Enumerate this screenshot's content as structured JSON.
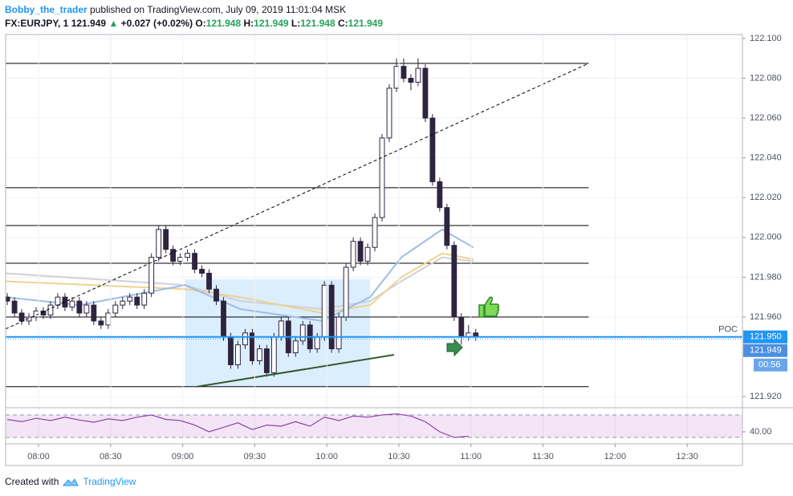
{
  "header": {
    "author": "Bobby_the_trader",
    "published": "published on TradingView.com, July 09, 2019 11:01:04 MSK",
    "symbol": "FX:EURJPY, 1",
    "last": "121.949",
    "arrow": "▲",
    "change": "+0.027 (+0.02%)",
    "o_label": "O:",
    "o": "121.948",
    "h_label": "H:",
    "h": "121.949",
    "l_label": "L:",
    "l": "121.948",
    "c_label": "C:",
    "c": "121.949"
  },
  "footer": {
    "text": "Created with",
    "brand": "TradingView"
  },
  "chart_data": {
    "type": "candlestick",
    "xlim": [
      466.3,
      773.0
    ],
    "ylim": [
      121.9144,
      122.102
    ],
    "xticks": [
      {
        "value": 480,
        "label": "08:00"
      },
      {
        "value": 510,
        "label": "08:30"
      },
      {
        "value": 540,
        "label": "09:00"
      },
      {
        "value": 570,
        "label": "09:30"
      },
      {
        "value": 600,
        "label": "10:00"
      },
      {
        "value": 630,
        "label": "10:30"
      },
      {
        "value": 660,
        "label": "11:00"
      },
      {
        "value": 690,
        "label": "11:30"
      },
      {
        "value": 720,
        "label": "12:00"
      },
      {
        "value": 750,
        "label": "12:30"
      }
    ],
    "yticks": [
      {
        "value": 121.92,
        "label": "121.920"
      },
      {
        "value": 121.96,
        "label": "121.960"
      },
      {
        "value": 121.98,
        "label": "121.980"
      },
      {
        "value": 122.0,
        "label": "122.000"
      },
      {
        "value": 122.02,
        "label": "122.020"
      },
      {
        "value": 122.04,
        "label": "122.040"
      },
      {
        "value": 122.06,
        "label": "122.060"
      },
      {
        "value": 122.08,
        "label": "122.080"
      },
      {
        "value": 122.1,
        "label": "122.100"
      }
    ],
    "grid": true,
    "up_color": "#ffffff",
    "down_color": "#2e2440",
    "wick_color": "#2e2440",
    "x": [
      467,
      470,
      473,
      476,
      479,
      482,
      485,
      488,
      491,
      494,
      497,
      500,
      503,
      506,
      509,
      512,
      515,
      518,
      521,
      524,
      527,
      530,
      533,
      536,
      539,
      542,
      545,
      548,
      551,
      554,
      557,
      560,
      563,
      566,
      569,
      572,
      575,
      578,
      581,
      584,
      587,
      590,
      593,
      596,
      599,
      602,
      605,
      608,
      611,
      614,
      617,
      620,
      623,
      626,
      629,
      632,
      635,
      638,
      641,
      644,
      647,
      650,
      653,
      656,
      659,
      662
    ],
    "open": [
      121.97,
      121.968,
      121.962,
      121.958,
      121.96,
      121.963,
      121.961,
      121.966,
      121.97,
      121.965,
      121.968,
      121.962,
      121.966,
      121.958,
      121.956,
      121.962,
      121.966,
      121.968,
      121.97,
      121.966,
      121.972,
      121.99,
      122.004,
      121.994,
      121.988,
      121.99,
      121.992,
      121.984,
      121.982,
      121.974,
      121.968,
      121.95,
      121.936,
      121.946,
      121.952,
      121.938,
      121.944,
      121.932,
      121.95,
      121.958,
      121.942,
      121.948,
      121.956,
      121.944,
      121.95,
      121.976,
      121.944,
      121.96,
      121.985,
      121.998,
      121.988,
      121.995,
      122.01,
      122.05,
      122.075,
      122.086,
      122.08,
      122.078,
      122.085,
      122.06,
      122.028,
      122.015,
      121.996,
      121.96,
      121.95,
      121.952
    ],
    "high": [
      121.972,
      121.97,
      121.964,
      121.962,
      121.965,
      121.965,
      121.968,
      121.972,
      121.972,
      121.97,
      121.97,
      121.968,
      121.968,
      121.96,
      121.964,
      121.968,
      121.97,
      121.972,
      121.972,
      121.974,
      121.992,
      122.006,
      122.006,
      121.996,
      121.992,
      121.994,
      121.994,
      121.986,
      121.984,
      121.976,
      121.97,
      121.952,
      121.948,
      121.954,
      121.954,
      121.946,
      121.946,
      121.952,
      121.96,
      121.96,
      121.95,
      121.958,
      121.958,
      121.952,
      121.978,
      121.978,
      121.962,
      121.987,
      122.0,
      122.0,
      121.997,
      122.012,
      122.052,
      122.077,
      122.09,
      122.09,
      122.082,
      122.09,
      122.087,
      122.062,
      122.03,
      122.017,
      121.998,
      121.962,
      121.956,
      121.954
    ],
    "low": [
      121.966,
      121.96,
      121.956,
      121.956,
      121.958,
      121.959,
      121.959,
      121.964,
      121.963,
      121.963,
      121.96,
      121.96,
      121.956,
      121.954,
      121.954,
      121.96,
      121.964,
      121.966,
      121.964,
      121.964,
      121.97,
      121.988,
      121.992,
      121.986,
      121.986,
      121.988,
      121.982,
      121.98,
      121.972,
      121.966,
      121.948,
      121.934,
      121.934,
      121.944,
      121.936,
      121.936,
      121.93,
      121.93,
      121.948,
      121.94,
      121.94,
      121.946,
      121.942,
      121.942,
      121.948,
      121.942,
      121.942,
      121.958,
      121.983,
      121.986,
      121.986,
      121.993,
      122.008,
      122.048,
      122.073,
      122.078,
      122.074,
      122.076,
      122.058,
      122.026,
      122.013,
      121.994,
      121.958,
      121.946,
      121.948,
      121.948
    ],
    "close": [
      121.968,
      121.962,
      121.958,
      121.96,
      121.963,
      121.961,
      121.966,
      121.97,
      121.965,
      121.968,
      121.962,
      121.966,
      121.958,
      121.956,
      121.962,
      121.966,
      121.968,
      121.97,
      121.966,
      121.972,
      121.99,
      122.004,
      121.994,
      121.988,
      121.99,
      121.992,
      121.984,
      121.982,
      121.974,
      121.968,
      121.95,
      121.936,
      121.946,
      121.952,
      121.938,
      121.944,
      121.932,
      121.95,
      121.958,
      121.942,
      121.948,
      121.956,
      121.944,
      121.95,
      121.976,
      121.944,
      121.96,
      121.985,
      121.998,
      121.988,
      121.995,
      122.01,
      122.05,
      122.075,
      122.086,
      122.08,
      122.078,
      122.085,
      122.06,
      122.028,
      122.015,
      121.996,
      121.96,
      121.95,
      121.952,
      121.95
    ],
    "series": [
      {
        "color": "#d0d0d6",
        "x": [
          466,
          541,
          564,
          598,
          618,
          631,
          648,
          661
        ],
        "values": [
          121.982,
          121.976,
          121.968,
          121.964,
          121.968,
          121.978,
          121.99,
          121.988
        ]
      },
      {
        "color": "#ecd391",
        "x": [
          466,
          541,
          564,
          598,
          618,
          631,
          648,
          661
        ],
        "values": [
          121.978,
          121.974,
          121.97,
          121.962,
          121.966,
          121.98,
          121.992,
          121.989
        ]
      },
      {
        "color": "#9fbde8",
        "x": [
          466,
          497,
          541,
          564,
          598,
          618,
          631,
          648,
          661
        ],
        "values": [
          121.97,
          121.966,
          121.976,
          121.964,
          121.958,
          121.97,
          121.99,
          122.004,
          121.995
        ]
      }
    ],
    "levels": {
      "prices": [
        122.0875,
        122.025,
        122.006,
        121.987,
        121.96,
        121.925
      ],
      "x": [
        466.3,
        709
      ]
    },
    "trend_line": {
      "x": [
        466.3,
        709
      ],
      "y": [
        121.954,
        122.0875
      ]
    },
    "range_box": {
      "x": [
        541,
        618
      ],
      "y": [
        121.979,
        121.925
      ]
    },
    "support_line": {
      "x": [
        546,
        628
      ],
      "y": [
        121.925,
        121.941
      ]
    },
    "poc": {
      "label": "POC",
      "value": 121.95,
      "value_label": "121.950"
    },
    "last_price": {
      "value": 121.949,
      "label": "121.949"
    },
    "countdown": "00:56",
    "rsi": {
      "color": "#8e44ad",
      "ylim": [
        18.6,
        82.9
      ],
      "levels": [
        70,
        30
      ],
      "yticks": [
        {
          "value": 40,
          "label": "40.00"
        }
      ],
      "x": [
        467,
        473,
        479,
        485,
        491,
        497,
        503,
        509,
        515,
        521,
        527,
        533,
        539,
        545,
        551,
        557,
        563,
        569,
        575,
        581,
        587,
        593,
        599,
        605,
        611,
        617,
        623,
        629,
        635,
        641,
        647,
        653,
        659
      ],
      "values": [
        62,
        58,
        64,
        60,
        66,
        61,
        57,
        63,
        60,
        66,
        70,
        62,
        60,
        52,
        40,
        48,
        56,
        44,
        52,
        50,
        58,
        50,
        66,
        60,
        68,
        66,
        70,
        72,
        68,
        58,
        40,
        30,
        32
      ]
    }
  }
}
